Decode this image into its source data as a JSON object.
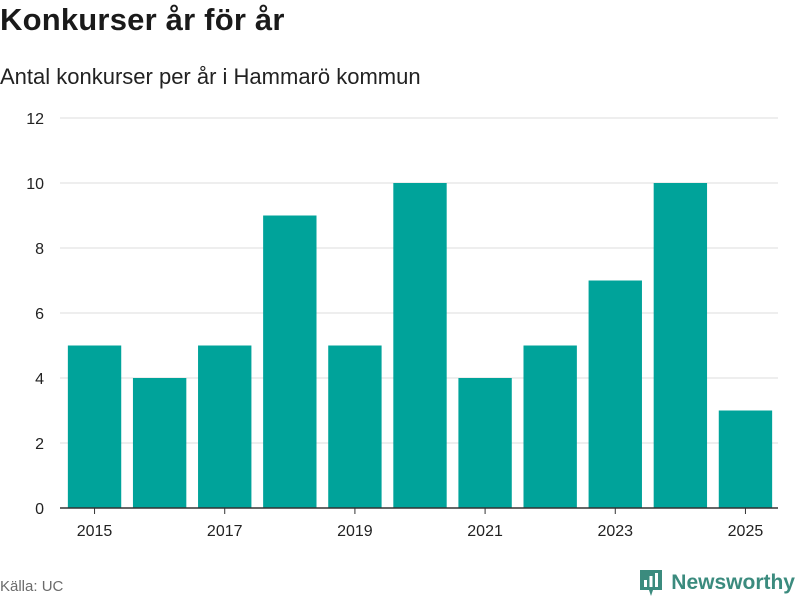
{
  "header": {
    "title": "Konkurser år för år",
    "subtitle": "Antal konkurser per år i Hammarö kommun"
  },
  "footer": {
    "source": "Källa: UC",
    "brand": "Newsworthy"
  },
  "chart_data": {
    "type": "bar",
    "x": [
      2015,
      2016,
      2017,
      2018,
      2019,
      2020,
      2021,
      2022,
      2023,
      2024,
      2025
    ],
    "values": [
      5,
      4,
      5,
      9,
      5,
      10,
      4,
      5,
      7,
      10,
      3
    ],
    "x_tick_labels": [
      "2015",
      "2017",
      "2019",
      "2021",
      "2023",
      "2025"
    ],
    "y_ticks": [
      0,
      2,
      4,
      6,
      8,
      10,
      12
    ],
    "ylim": [
      0,
      12
    ],
    "grid": true,
    "colors": {
      "bar": "#00a39a",
      "grid": "#dcdcdc",
      "axis": "#333333"
    }
  }
}
